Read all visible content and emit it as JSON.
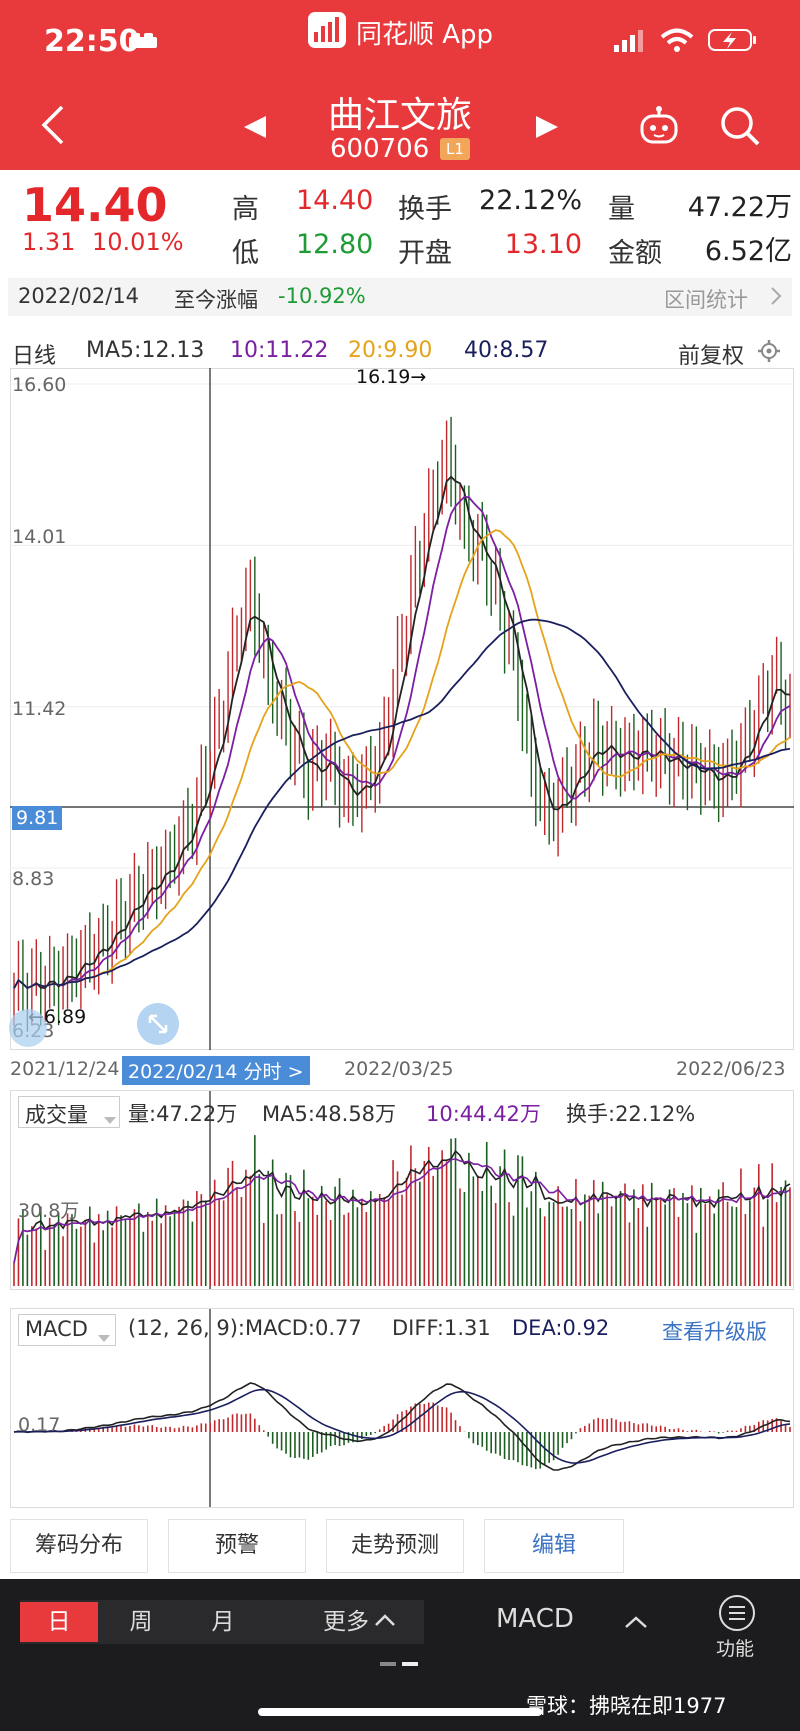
{
  "status_bar": {
    "time": "22:50"
  },
  "app": {
    "name": "同花顺 App"
  },
  "stock": {
    "name": "曲江文旅",
    "code": "600706",
    "level_badge": "L1"
  },
  "quote": {
    "price": "14.40",
    "change": "1.31",
    "change_pct": "10.01%",
    "high_label": "高",
    "high": "14.40",
    "low_label": "低",
    "low": "12.80",
    "turnover_label": "换手",
    "turnover": "22.12%",
    "open_label": "开盘",
    "open": "13.10",
    "volume_label": "量",
    "volume": "47.22万",
    "amount_label": "金额",
    "amount": "6.52亿"
  },
  "range": {
    "date": "2022/02/14",
    "label": "至今涨幅",
    "value": "-10.92%",
    "stats_link": "区间统计"
  },
  "kline": {
    "period_label": "日线",
    "ma5": "MA5:12.13",
    "ma10": "10:11.22",
    "ma20": "20:9.90",
    "ma40": "40:8.57",
    "adjust": "前复权",
    "y_ticks": [
      "16.60",
      "14.01",
      "11.42",
      "8.83",
      "6.23"
    ],
    "cursor_price": "9.81",
    "max_label": "16.19→",
    "min_label": "←6.89",
    "x_start": "2021/12/24",
    "x_cursor": "2022/02/14 分时 >",
    "x_mid": "2022/03/25",
    "x_end": "2022/06/23",
    "colors": {
      "ma5": "#222222",
      "ma10": "#7b1fa2",
      "ma20": "#e5a31a",
      "ma40": "#1a1f5e",
      "up": "#c0282d",
      "down": "#1b5e20"
    }
  },
  "volume_panel": {
    "selector": "成交量",
    "vol": "量:47.22万",
    "ma5": "MA5:48.58万",
    "ma10": "10:44.42万",
    "turnover": "换手:22.12%",
    "y_tick": "30.8万"
  },
  "macd_panel": {
    "selector": "MACD",
    "params": "(12, 26, 9):MACD:0.77",
    "diff": "DIFF:1.31",
    "dea": "DEA:0.92",
    "upgrade_link": "查看升级版",
    "y_tick": "0.17"
  },
  "tools": [
    "筹码分布",
    "预警",
    "走势预测",
    "编辑"
  ],
  "bottom_tabs": {
    "day": "日",
    "week": "周",
    "month": "月",
    "more": "更多",
    "indicator": "MACD",
    "func": "功能"
  },
  "watermark": "雪球：拂晓在即1977"
}
